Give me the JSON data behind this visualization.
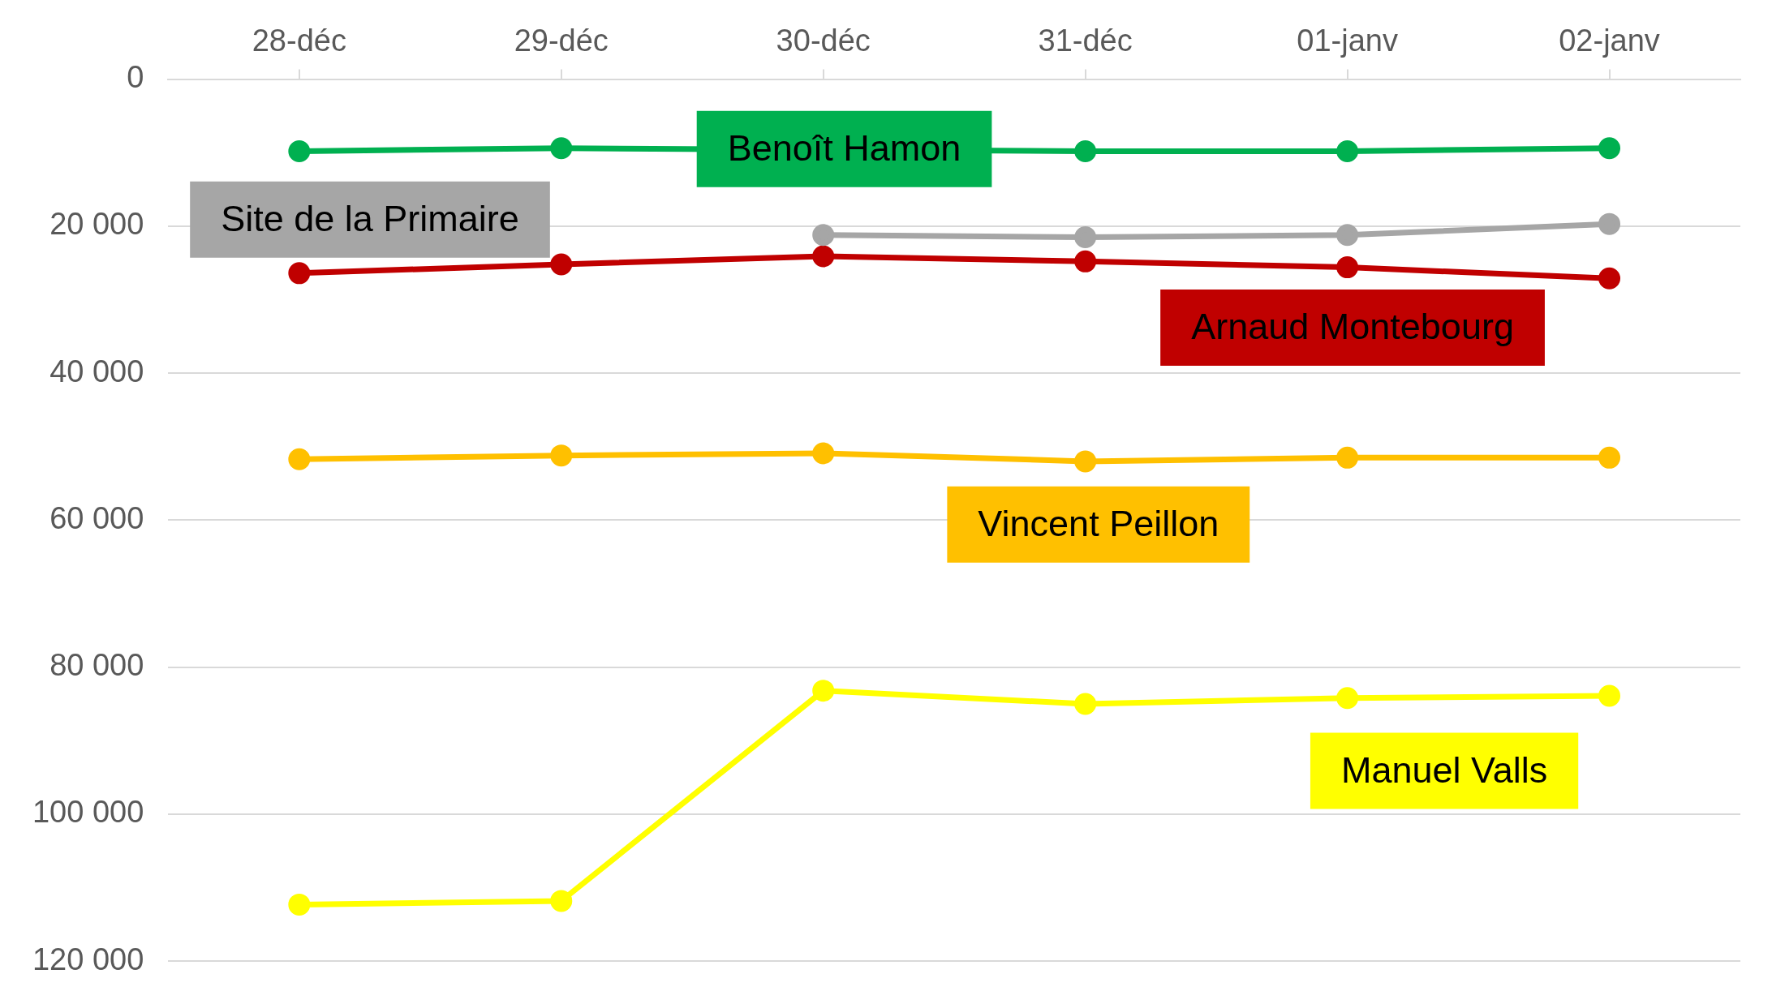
{
  "chart_data": {
    "type": "line",
    "categories": [
      "28-déc",
      "29-déc",
      "30-déc",
      "31-déc",
      "01-janv",
      "02-janv"
    ],
    "series": [
      {
        "name": "Benoît Hamon",
        "color": "#00b050",
        "values": [
          9800,
          9400,
          null,
          9800,
          9800,
          9400
        ]
      },
      {
        "name": "Site de la Primaire",
        "color": "#a6a6a6",
        "values": [
          null,
          null,
          21200,
          21500,
          21200,
          19700
        ]
      },
      {
        "name": "Arnaud Montebourg",
        "color": "#c00000",
        "values": [
          26400,
          25200,
          24100,
          24800,
          25600,
          27100
        ]
      },
      {
        "name": "Vincent Peillon",
        "color": "#ffc000",
        "values": [
          51700,
          51200,
          50900,
          52000,
          51500,
          51500
        ]
      },
      {
        "name": "Manuel Valls",
        "color": "#ffff00",
        "values": [
          112300,
          111800,
          83200,
          85000,
          84200,
          83900
        ]
      }
    ],
    "ylim": [
      120000,
      0
    ],
    "yticks": [
      {
        "value": 0,
        "label": "0"
      },
      {
        "value": 20000,
        "label": "20 000"
      },
      {
        "value": 40000,
        "label": "40 000"
      },
      {
        "value": 60000,
        "label": "60 000"
      },
      {
        "value": 80000,
        "label": "80 000"
      },
      {
        "value": 100000,
        "label": "100 000"
      },
      {
        "value": 120000,
        "label": "120 000"
      }
    ],
    "grid": "y",
    "legend": false,
    "marker": "circle",
    "line_style": "solid"
  }
}
